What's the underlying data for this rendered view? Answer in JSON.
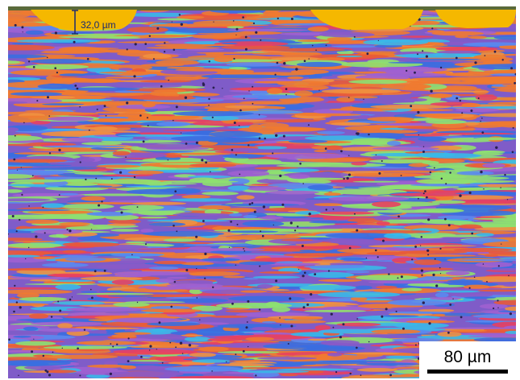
{
  "annotations": {
    "thickness_label": "32,0 µm",
    "scale_bar_label": "80 µm"
  }
}
